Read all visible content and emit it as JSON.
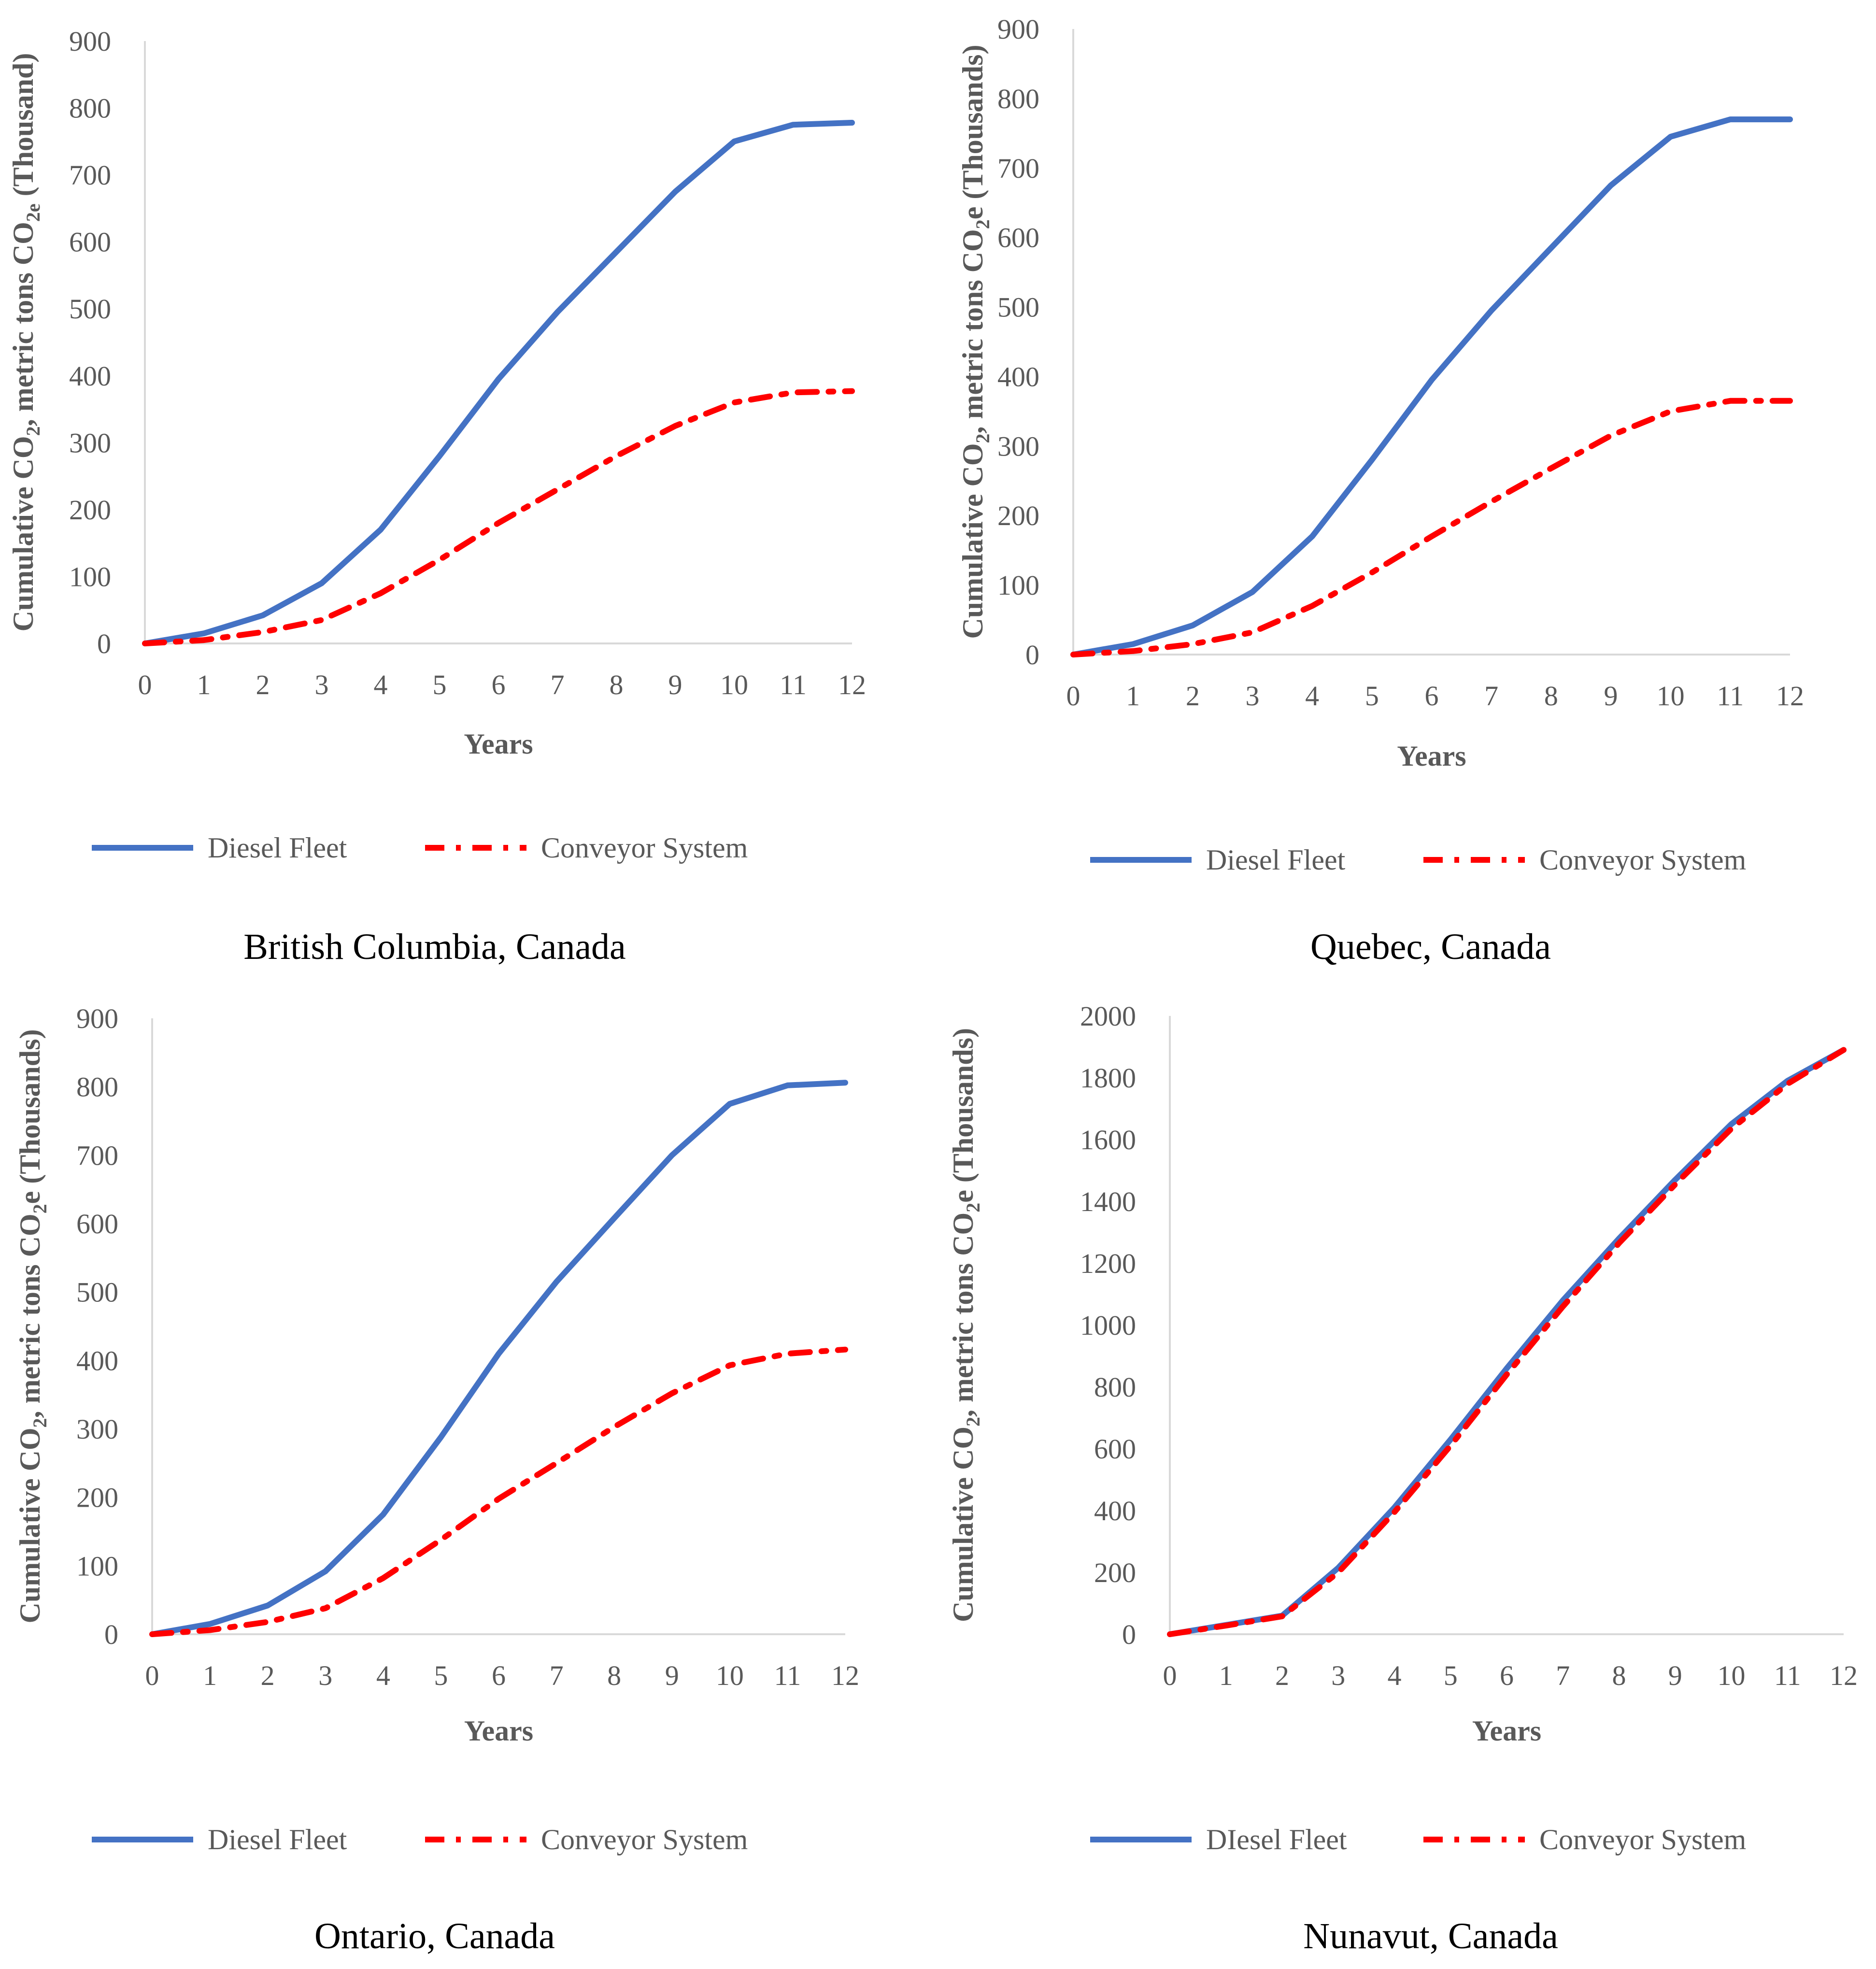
{
  "colors": {
    "diesel": "#4472C4",
    "conveyor": "#FF0000",
    "axis": "#D9D9D9",
    "text": "#595959"
  },
  "chart_data": [
    {
      "type": "line",
      "title": "British Columbia, Canada",
      "xlabel": "Years",
      "ylabel_parts": [
        "Cumulative CO",
        "2",
        ", metric tons CO",
        "2e",
        " (Thousand)"
      ],
      "x": [
        0,
        1,
        2,
        3,
        4,
        5,
        6,
        7,
        8,
        9,
        10,
        11,
        12
      ],
      "ylim": [
        0,
        900
      ],
      "yticks": [
        0,
        100,
        200,
        300,
        400,
        500,
        600,
        700,
        800,
        900
      ],
      "series": [
        {
          "name": "Diesel Fleet",
          "values": [
            0,
            15,
            42,
            90,
            170,
            280,
            395,
            495,
            585,
            675,
            750,
            775,
            778
          ]
        },
        {
          "name": "Conveyor System",
          "values": [
            0,
            5,
            17,
            35,
            75,
            125,
            180,
            230,
            280,
            325,
            360,
            375,
            377
          ]
        }
      ]
    },
    {
      "type": "line",
      "title": "Quebec, Canada",
      "xlabel": "Years",
      "ylabel_parts": [
        "Cumulative CO",
        "2",
        ", metric tons CO",
        "2",
        "e (Thousands)"
      ],
      "x": [
        0,
        1,
        2,
        3,
        4,
        5,
        6,
        7,
        8,
        9,
        10,
        11,
        12
      ],
      "ylim": [
        0,
        900
      ],
      "yticks": [
        0,
        100,
        200,
        300,
        400,
        500,
        600,
        700,
        800,
        900
      ],
      "series": [
        {
          "name": "Diesel Fleet",
          "values": [
            0,
            15,
            42,
            90,
            170,
            280,
            395,
            495,
            585,
            675,
            745,
            770,
            770
          ]
        },
        {
          "name": "Conveyor System",
          "values": [
            0,
            5,
            15,
            32,
            70,
            118,
            170,
            220,
            268,
            315,
            350,
            365,
            365
          ]
        }
      ]
    },
    {
      "type": "line",
      "title": "Ontario, Canada",
      "xlabel": "Years",
      "ylabel_parts": [
        "Cumulative CO",
        "2",
        ", metric tons CO",
        "2",
        "e (Thousands)"
      ],
      "x": [
        0,
        1,
        2,
        3,
        4,
        5,
        6,
        7,
        8,
        9,
        10,
        11,
        12
      ],
      "ylim": [
        0,
        900
      ],
      "yticks": [
        0,
        100,
        200,
        300,
        400,
        500,
        600,
        700,
        800,
        900
      ],
      "series": [
        {
          "name": "Diesel Fleet",
          "values": [
            0,
            15,
            42,
            92,
            175,
            288,
            410,
            515,
            608,
            700,
            775,
            802,
            806
          ]
        },
        {
          "name": "Conveyor System",
          "values": [
            0,
            6,
            18,
            38,
            82,
            138,
            198,
            250,
            303,
            352,
            393,
            410,
            416
          ]
        }
      ]
    },
    {
      "type": "line",
      "title": "Nunavut, Canada",
      "xlabel": "Years",
      "ylabel_parts": [
        "Cumulative CO",
        "2",
        ", metric tons CO",
        "2",
        "e (Thousands)"
      ],
      "x": [
        0,
        1,
        2,
        3,
        4,
        5,
        6,
        7,
        8,
        9,
        10,
        11,
        12
      ],
      "ylim": [
        0,
        2000
      ],
      "yticks": [
        0,
        200,
        400,
        600,
        800,
        1000,
        1200,
        1400,
        1600,
        1800,
        2000
      ],
      "series": [
        {
          "name": "DIesel Fleet",
          "values": [
            0,
            30,
            60,
            215,
            410,
            630,
            860,
            1080,
            1280,
            1470,
            1650,
            1790,
            1890
          ]
        },
        {
          "name": "Conveyor System",
          "values": [
            0,
            28,
            58,
            200,
            395,
            610,
            840,
            1060,
            1265,
            1455,
            1635,
            1780,
            1890
          ]
        }
      ]
    }
  ]
}
